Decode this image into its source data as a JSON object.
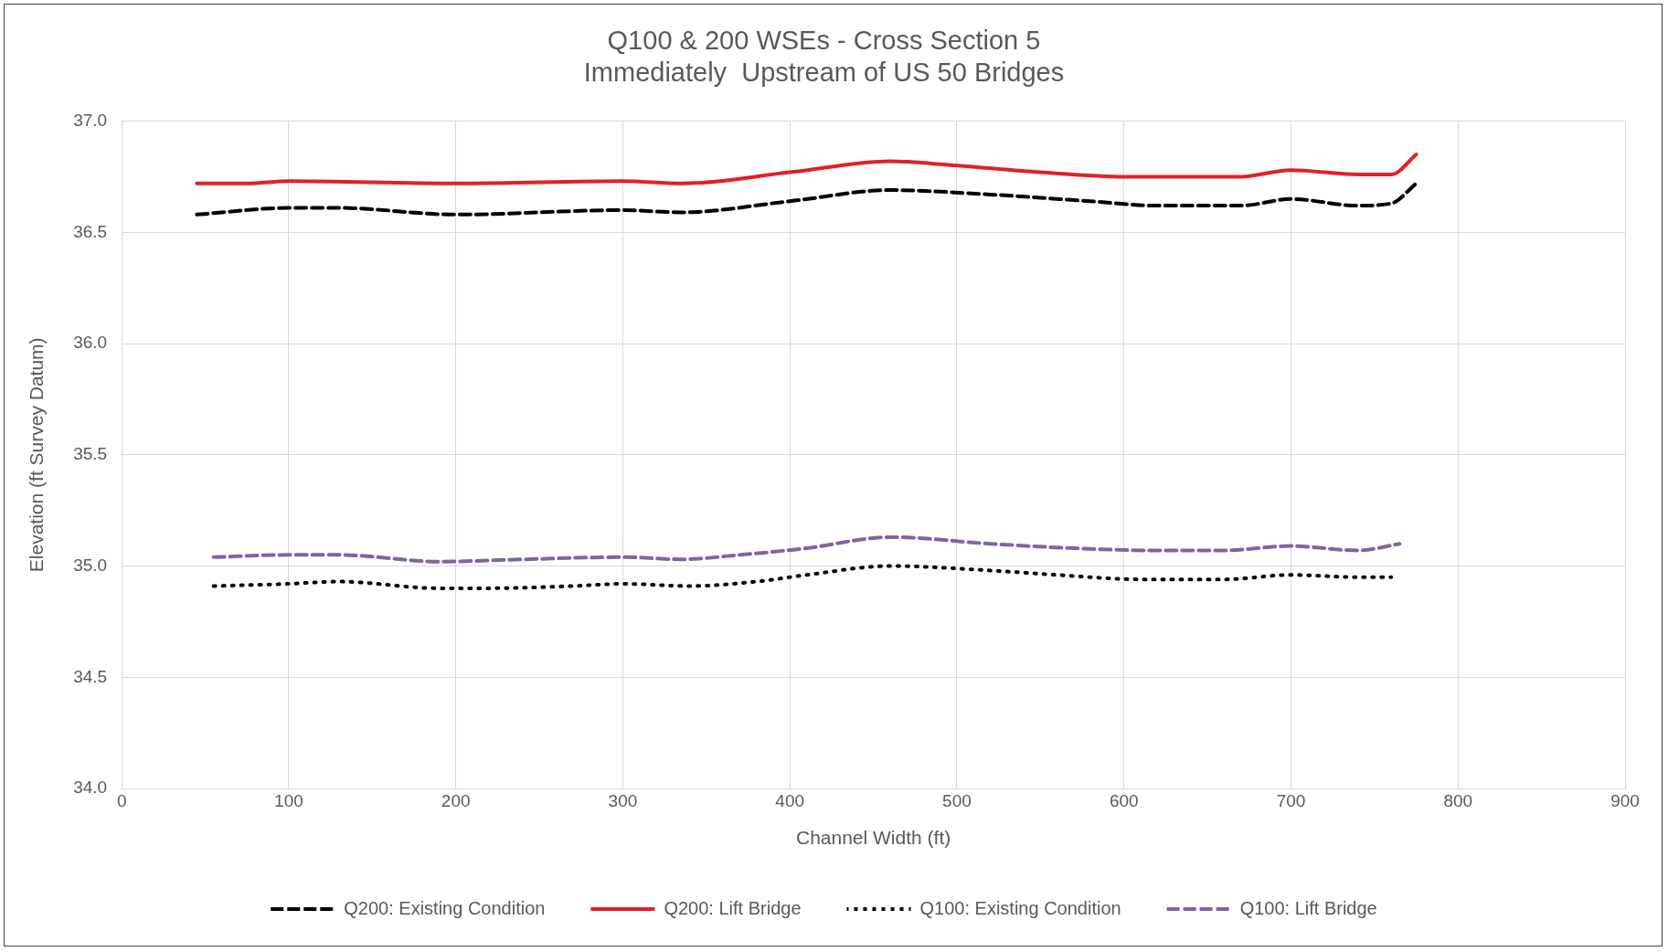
{
  "chart_data": {
    "type": "line",
    "title": "Q100 & 200 WSEs - Cross Section 5",
    "subtitle": "Immediately  Upstream of US 50 Bridges",
    "xlabel": "Channel Width (ft)",
    "ylabel": "Elevation (ft Survey Datum)",
    "xlim": [
      0,
      900
    ],
    "xticks": [
      0,
      100,
      200,
      300,
      400,
      500,
      600,
      700,
      800,
      900
    ],
    "ylim": [
      34.0,
      37.0
    ],
    "yticks": [
      {
        "value": 34,
        "label": "34.0"
      },
      {
        "value": 34.5,
        "label": "34.5"
      },
      {
        "value": 35,
        "label": "35.0"
      },
      {
        "value": 35.5,
        "label": "35.5"
      },
      {
        "value": 36,
        "label": "36.0"
      },
      {
        "value": 36.5,
        "label": "36.5"
      },
      {
        "value": 37,
        "label": "37.0"
      }
    ],
    "grid": true,
    "legend": "bottom",
    "marker": "none",
    "series": [
      {
        "name": "Q200: Existing Condition",
        "color": "#000000",
        "line_style": "dashed",
        "x": [
          45,
          100,
          130,
          200,
          300,
          335,
          400,
          460,
          520,
          580,
          620,
          670,
          700,
          740,
          760,
          775
        ],
        "values": [
          36.58,
          36.61,
          36.61,
          36.58,
          36.6,
          36.59,
          36.64,
          36.69,
          36.67,
          36.64,
          36.62,
          36.62,
          36.65,
          36.62,
          36.63,
          36.72
        ]
      },
      {
        "name": "Q200: Lift Bridge",
        "color": "#e0202a",
        "line_style": "solid",
        "x": [
          45,
          75,
          100,
          200,
          300,
          335,
          400,
          460,
          500,
          550,
          600,
          670,
          700,
          740,
          760,
          775
        ],
        "values": [
          36.72,
          36.72,
          36.73,
          36.72,
          36.73,
          36.72,
          36.77,
          36.82,
          36.8,
          36.77,
          36.75,
          36.75,
          36.78,
          36.76,
          36.76,
          36.85
        ]
      },
      {
        "name": "Q100: Existing Condition",
        "color": "#000000",
        "line_style": "dotted",
        "x": [
          55,
          100,
          130,
          190,
          220,
          270,
          300,
          340,
          380,
          410,
          460,
          520,
          560,
          610,
          660,
          700,
          740,
          760
        ],
        "values": [
          34.91,
          34.92,
          34.93,
          34.9,
          34.9,
          34.91,
          34.92,
          34.91,
          34.93,
          34.96,
          35.0,
          34.98,
          34.96,
          34.94,
          34.94,
          34.96,
          34.95,
          34.95
        ]
      },
      {
        "name": "Q100: Lift Bridge",
        "color": "#8064a2",
        "line_style": "dashed",
        "x": [
          55,
          100,
          130,
          190,
          240,
          300,
          335,
          370,
          410,
          460,
          520,
          570,
          620,
          660,
          700,
          740,
          765
        ],
        "values": [
          35.04,
          35.05,
          35.05,
          35.02,
          35.03,
          35.04,
          35.03,
          35.05,
          35.08,
          35.13,
          35.1,
          35.08,
          35.07,
          35.07,
          35.09,
          35.07,
          35.1
        ]
      }
    ]
  }
}
